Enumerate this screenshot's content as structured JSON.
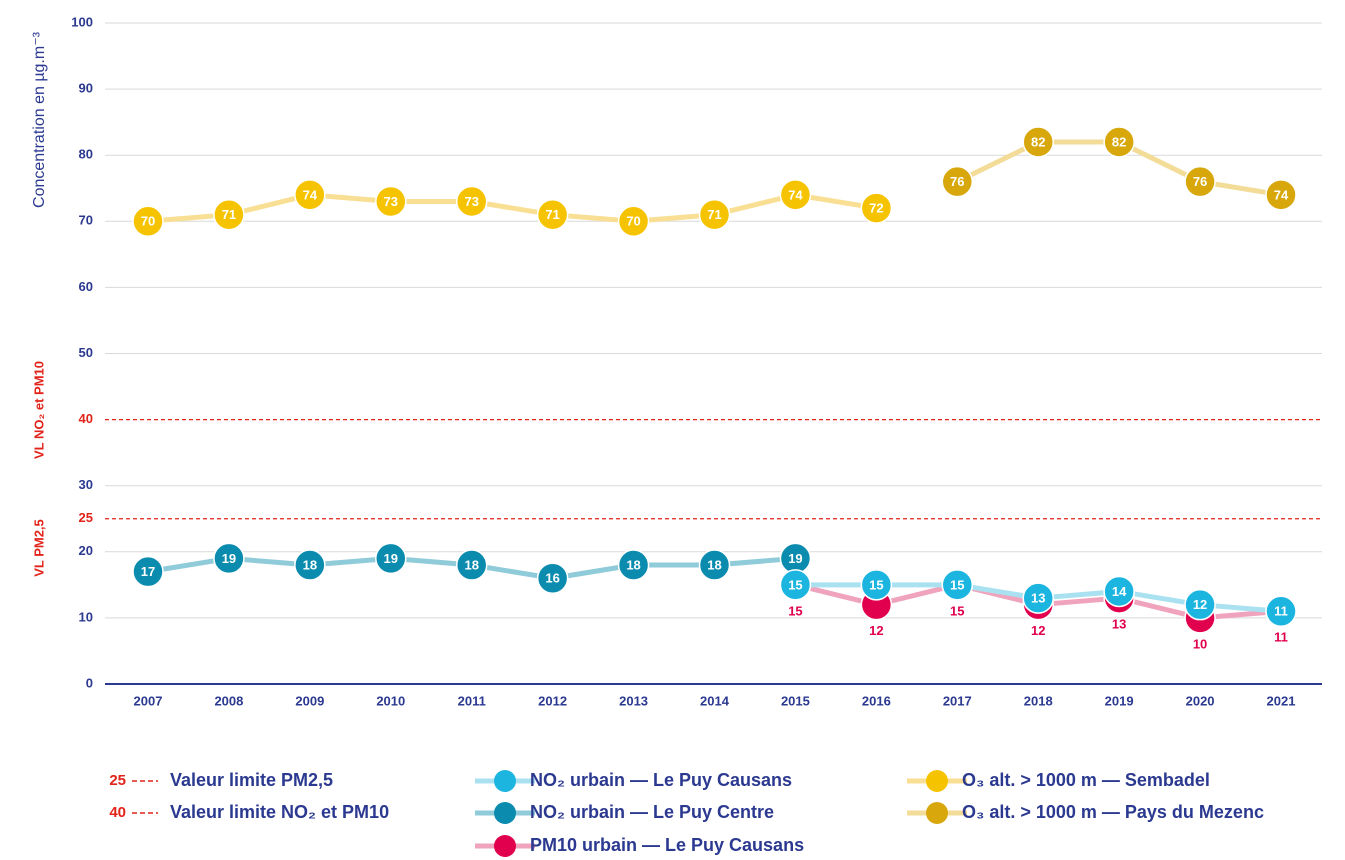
{
  "chart_data": {
    "type": "line",
    "y_label": "Concentration en µg.m⁻³",
    "categories": [
      "2007",
      "2008",
      "2009",
      "2010",
      "2011",
      "2012",
      "2013",
      "2014",
      "2015",
      "2016",
      "2017",
      "2018",
      "2019",
      "2020",
      "2021"
    ],
    "ylim": [
      0,
      100
    ],
    "yticks": [
      0,
      10,
      20,
      25,
      30,
      40,
      50,
      60,
      70,
      80,
      90,
      100
    ],
    "grid": true,
    "reference_lines": [
      {
        "value": 25,
        "label": "VL PM2,5",
        "legend": "Valeur limite PM2,5",
        "color": "#e2231a"
      },
      {
        "value": 40,
        "label": "VL NO₂ et PM10",
        "legend": "Valeur limite NO₂ et PM10",
        "color": "#e2231a"
      }
    ],
    "series": [
      {
        "name": "NO₂ urbain — Le Puy Causans",
        "color": "#1cb5df",
        "line_color": "#a9e1f1",
        "values": [
          null,
          null,
          null,
          null,
          null,
          null,
          null,
          null,
          15,
          15,
          15,
          13,
          14,
          12,
          11
        ]
      },
      {
        "name": "NO₂ urbain — Le Puy Centre",
        "color": "#0b8caf",
        "line_color": "#8fcbd9",
        "values": [
          17,
          19,
          18,
          19,
          18,
          16,
          18,
          18,
          19,
          null,
          null,
          null,
          null,
          null,
          null
        ]
      },
      {
        "name": "PM10 urbain — Le Puy Causans",
        "color": "#e0004d",
        "line_color": "#f0a3bc",
        "values": [
          null,
          null,
          null,
          null,
          null,
          null,
          null,
          null,
          15,
          12,
          15,
          12,
          13,
          10,
          11
        ]
      },
      {
        "name": "O₃ alt. > 1000 m — Sembadel",
        "color": "#f6c300",
        "line_color": "#f8df93",
        "values": [
          70,
          71,
          74,
          73,
          73,
          71,
          70,
          71,
          74,
          72,
          null,
          null,
          null,
          null,
          null
        ]
      },
      {
        "name": "O₃ alt. > 1000 m — Pays du Mezenc",
        "color": "#d7a70b",
        "line_color": "#f3dc98",
        "values": [
          null,
          null,
          null,
          null,
          null,
          null,
          null,
          null,
          null,
          null,
          76,
          82,
          82,
          76,
          74
        ]
      }
    ]
  }
}
